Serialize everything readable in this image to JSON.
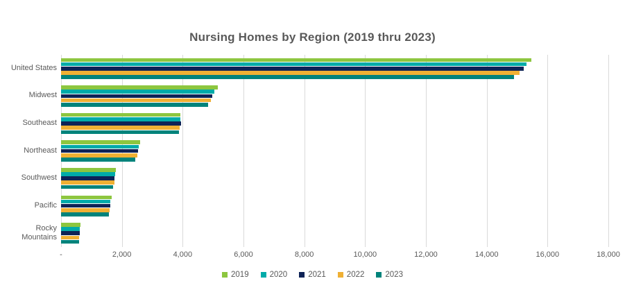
{
  "chart_data": {
    "type": "bar",
    "orientation": "horizontal",
    "title": "Nursing Homes by Region (2019 thru 2023)",
    "categories": [
      "United States",
      "Midwest",
      "Southeast",
      "Northeast",
      "Southwest",
      "Pacific",
      "Rocky Mountains"
    ],
    "series": [
      {
        "name": "2019",
        "color": "#8DC63F",
        "values": [
          15475,
          5150,
          3935,
          2610,
          1800,
          1655,
          630
        ]
      },
      {
        "name": "2020",
        "color": "#00ABA9",
        "values": [
          15300,
          5040,
          3920,
          2565,
          1770,
          1610,
          615
        ]
      },
      {
        "name": "2021",
        "color": "#0E2356",
        "values": [
          15220,
          4980,
          3945,
          2540,
          1760,
          1620,
          625
        ]
      },
      {
        "name": "2022",
        "color": "#EFB034",
        "values": [
          15090,
          4930,
          3900,
          2520,
          1755,
          1595,
          595
        ]
      },
      {
        "name": "2023",
        "color": "#00837B",
        "values": [
          14890,
          4840,
          3870,
          2450,
          1710,
          1580,
          600
        ]
      }
    ],
    "xlim": [
      0,
      18000
    ],
    "tick_values": [
      0,
      2000,
      4000,
      6000,
      8000,
      10000,
      12000,
      14000,
      16000,
      18000
    ],
    "tick_labels": [
      "-",
      "2,000",
      "4,000",
      "6,000",
      "8,000",
      "10,000",
      "12,000",
      "14,000",
      "16,000",
      "18,000"
    ],
    "legend_position": "bottom",
    "gridlines": "vertical",
    "gridline_color": "#d9d9d9",
    "text_color": "#595959",
    "background_color": "#ffffff"
  }
}
